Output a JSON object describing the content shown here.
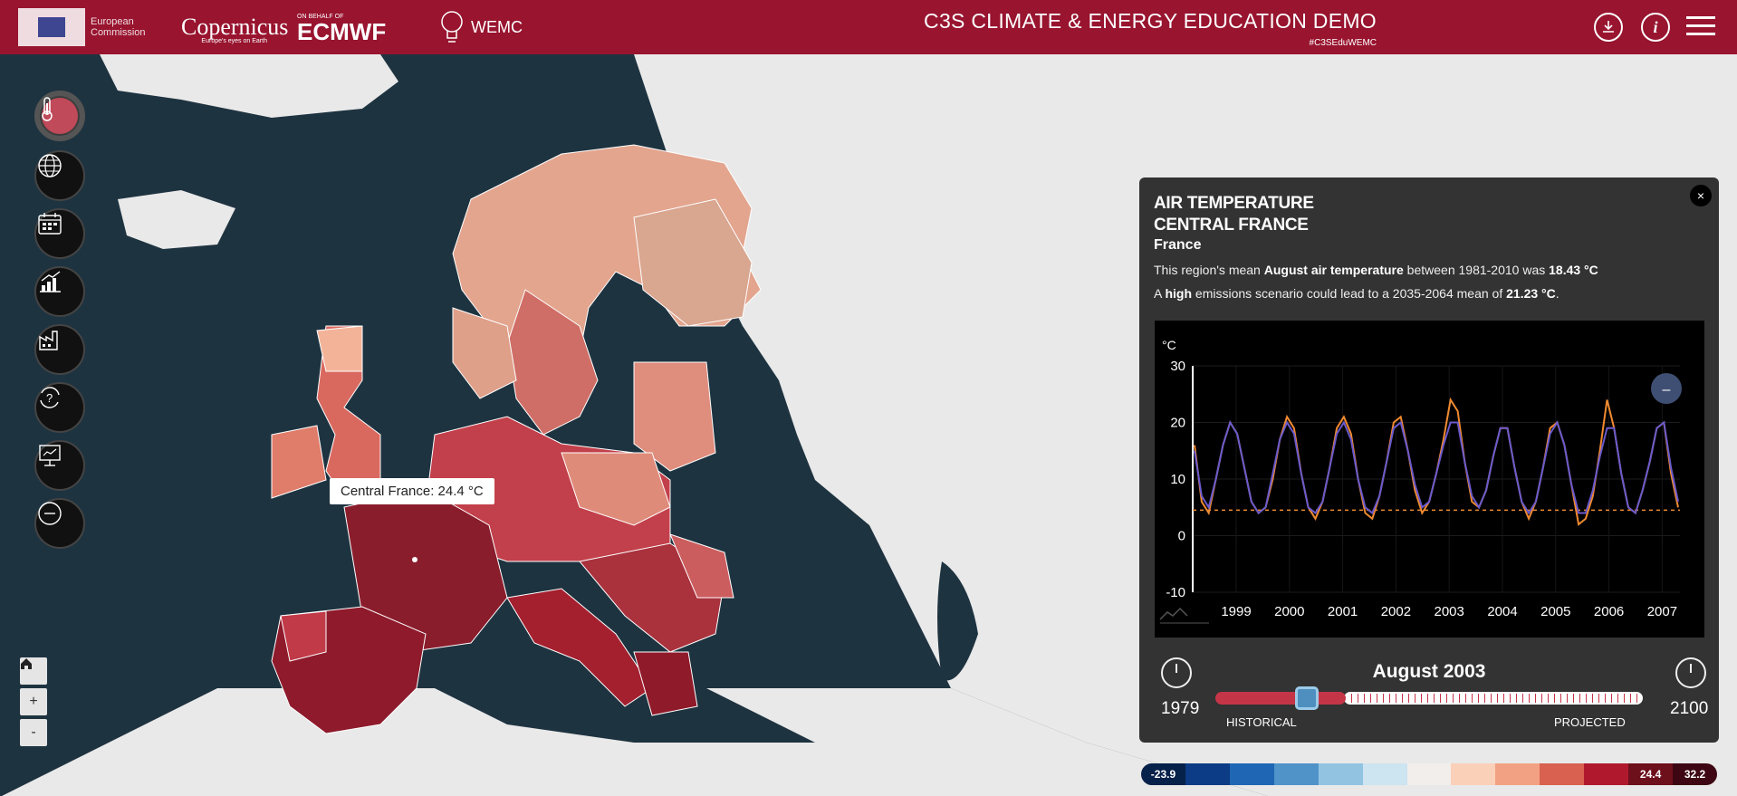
{
  "header": {
    "title": "C3S CLIMATE & ENERGY EDUCATION DEMO",
    "hashtag": "#C3SEduWEMC",
    "eu_text_1": "European",
    "eu_text_2": "Commission",
    "copernicus": "Copernicus",
    "copernicus_sub": "Europe's eyes on Earth",
    "ecmwf_on_behalf": "ON BEHALF OF",
    "ecmwf": "ECMWF",
    "wemc": "WEMC",
    "download_icon": "download-icon",
    "info_icon": "info-icon",
    "menu_icon": "hamburger-menu-icon",
    "brand_color": "#98142f"
  },
  "toolbar": {
    "items": [
      {
        "name": "thermometer-icon",
        "active": true
      },
      {
        "name": "globe-icon"
      },
      {
        "name": "calendar-icon"
      },
      {
        "name": "chart-icon"
      },
      {
        "name": "factory-icon"
      },
      {
        "name": "question-cycle-icon"
      },
      {
        "name": "presentation-icon"
      },
      {
        "name": "minus-icon"
      }
    ]
  },
  "zoom": {
    "home": "⌂",
    "plus": "+",
    "minus": "-"
  },
  "tooltip": {
    "text": "Central France: 24.4 °C"
  },
  "panel": {
    "heading1": "AIR TEMPERATURE",
    "heading2": "CENTRAL FRANCE",
    "heading3": "France",
    "line1_a": "This region's mean ",
    "line1_b": "August air temperature",
    "line1_c": " between 1981-2010 was ",
    "line1_d": "18.43 °C",
    "line2_a": "A ",
    "line2_b": "high",
    "line2_c": " emissions scenario could lead to a 2035-2064 mean of ",
    "line2_d": "21.23 °C",
    "line2_e": ".",
    "close": "×",
    "collapse_button": "–"
  },
  "chart_data": {
    "type": "line",
    "ylabel": "°C",
    "ylim": [
      -10,
      30
    ],
    "yticks": [
      "30",
      "20",
      "10",
      "0",
      "-10"
    ],
    "x_tick_labels": [
      "1999",
      "2000",
      "2001",
      "2002",
      "2003",
      "2004",
      "2005",
      "2006",
      "2007"
    ],
    "series": [
      {
        "color": "#f08a30",
        "values": [
          16,
          6,
          4,
          10,
          16,
          20,
          18,
          12,
          6,
          4,
          5,
          10,
          17,
          21,
          19,
          11,
          5,
          3,
          6,
          12,
          19,
          21,
          18,
          10,
          4,
          3,
          7,
          13,
          20,
          21,
          15,
          8,
          4,
          6,
          11,
          17,
          24,
          22,
          13,
          6,
          5,
          8,
          14,
          19,
          19,
          12,
          6,
          3,
          6,
          12,
          19,
          20,
          16,
          9,
          2,
          3,
          7,
          15,
          24,
          19,
          11,
          5,
          4,
          8,
          13,
          19,
          20,
          11,
          5
        ]
      },
      {
        "color": "#6a5acd",
        "values": [
          15,
          7,
          5,
          10,
          16,
          20,
          18,
          12,
          6,
          4,
          5,
          11,
          17,
          20,
          18,
          11,
          5,
          4,
          6,
          12,
          18,
          20,
          17,
          10,
          5,
          4,
          7,
          13,
          19,
          20,
          15,
          9,
          5,
          6,
          11,
          16,
          20,
          20,
          13,
          7,
          5,
          8,
          14,
          19,
          19,
          12,
          6,
          4,
          6,
          12,
          18,
          20,
          16,
          9,
          4,
          4,
          8,
          14,
          19,
          19,
          11,
          5,
          4,
          8,
          13,
          19,
          20,
          12,
          6
        ]
      }
    ],
    "reference_line": 4.5
  },
  "slider": {
    "current_label": "August 2003",
    "start_year": "1979",
    "end_year": "2100",
    "historical_label": "HISTORICAL",
    "projected_label": "PROJECTED"
  },
  "colorbar": {
    "min_label": "-23.9",
    "current_label": "24.4",
    "max_label": "32.2",
    "colors": [
      "#06214a",
      "#0b3c85",
      "#1f67b5",
      "#4f93c9",
      "#92c4e2",
      "#cde4f1",
      "#f1eeec",
      "#fbd0b9",
      "#f2a282",
      "#d8614f",
      "#b0192d",
      "#6e0f1c",
      "#3d0612"
    ]
  }
}
